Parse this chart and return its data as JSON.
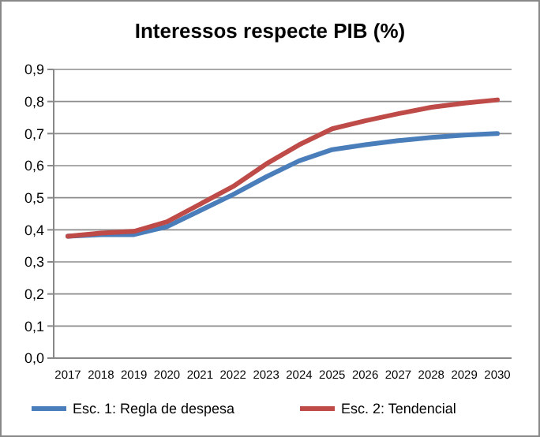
{
  "chart_data": {
    "type": "line",
    "title": "Interessos respecte PIB (%)",
    "categories": [
      "2017",
      "2018",
      "2019",
      "2020",
      "2021",
      "2022",
      "2023",
      "2024",
      "2025",
      "2026",
      "2027",
      "2028",
      "2029",
      "2030"
    ],
    "series": [
      {
        "name": "Esc. 1: Regla de despesa",
        "color": "#4a7ebb",
        "values": [
          0.38,
          0.385,
          0.385,
          0.41,
          0.46,
          0.51,
          0.565,
          0.615,
          0.65,
          0.665,
          0.678,
          0.688,
          0.695,
          0.7
        ]
      },
      {
        "name": "Esc. 2: Tendencial",
        "color": "#be4b48",
        "values": [
          0.38,
          0.39,
          0.395,
          0.425,
          0.48,
          0.535,
          0.605,
          0.665,
          0.715,
          0.74,
          0.762,
          0.782,
          0.795,
          0.805
        ]
      }
    ],
    "ylim": [
      0,
      0.9
    ],
    "yticks": [
      {
        "value": 0,
        "label": "0,0"
      },
      {
        "value": 0.1,
        "label": "0,1"
      },
      {
        "value": 0.2,
        "label": "0,2"
      },
      {
        "value": 0.3,
        "label": "0,3"
      },
      {
        "value": 0.4,
        "label": "0,4"
      },
      {
        "value": 0.5,
        "label": "0,5"
      },
      {
        "value": 0.6,
        "label": "0,6"
      },
      {
        "value": 0.7,
        "label": "0,7"
      },
      {
        "value": 0.8,
        "label": "0,8"
      },
      {
        "value": 0.9,
        "label": "0,9"
      }
    ],
    "grid": "y",
    "legend": "bottom",
    "line_style": "solid"
  }
}
